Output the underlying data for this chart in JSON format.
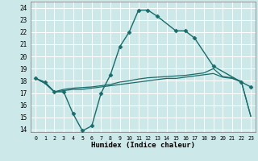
{
  "xlabel": "Humidex (Indice chaleur)",
  "bg_color": "#cce8e8",
  "grid_color": "#ffffff",
  "line_color": "#1a6b6b",
  "xlim": [
    -0.5,
    23.5
  ],
  "ylim": [
    13.8,
    24.5
  ],
  "yticks": [
    14,
    15,
    16,
    17,
    18,
    19,
    20,
    21,
    22,
    23,
    24
  ],
  "xticks": [
    0,
    1,
    2,
    3,
    4,
    5,
    6,
    7,
    8,
    9,
    10,
    11,
    12,
    13,
    14,
    15,
    16,
    17,
    18,
    19,
    20,
    21,
    22,
    23
  ],
  "line1_x": [
    0,
    1,
    2,
    3,
    4,
    5,
    6,
    7,
    8,
    9,
    10,
    11,
    12,
    13,
    15,
    16,
    17,
    19,
    22,
    23
  ],
  "line1_y": [
    18.2,
    17.9,
    17.1,
    17.1,
    15.3,
    13.9,
    14.3,
    17.0,
    18.5,
    20.8,
    22.0,
    23.8,
    23.8,
    23.3,
    22.1,
    22.1,
    21.5,
    19.2,
    17.9,
    17.5
  ],
  "line2_x": [
    0,
    1,
    2,
    3,
    4,
    5,
    6,
    7,
    8,
    9,
    10,
    11,
    12,
    13,
    14,
    15,
    16,
    17,
    18,
    19,
    20,
    21,
    22,
    23
  ],
  "line2_y": [
    18.2,
    17.8,
    17.1,
    17.2,
    17.3,
    17.3,
    17.4,
    17.5,
    17.6,
    17.7,
    17.8,
    17.9,
    18.0,
    18.1,
    18.2,
    18.2,
    18.3,
    18.4,
    18.5,
    18.6,
    18.3,
    18.2,
    17.9,
    15.1
  ],
  "line3_x": [
    0,
    1,
    2,
    3,
    4,
    5,
    6,
    7,
    8,
    9,
    10,
    11,
    12,
    13,
    14,
    15,
    16,
    17,
    18,
    19,
    20,
    21,
    22,
    23
  ],
  "line3_y": [
    18.2,
    17.8,
    17.1,
    17.3,
    17.4,
    17.45,
    17.5,
    17.6,
    17.7,
    17.9,
    18.0,
    18.15,
    18.25,
    18.3,
    18.35,
    18.4,
    18.45,
    18.55,
    18.65,
    19.0,
    18.35,
    18.25,
    17.95,
    15.1
  ]
}
